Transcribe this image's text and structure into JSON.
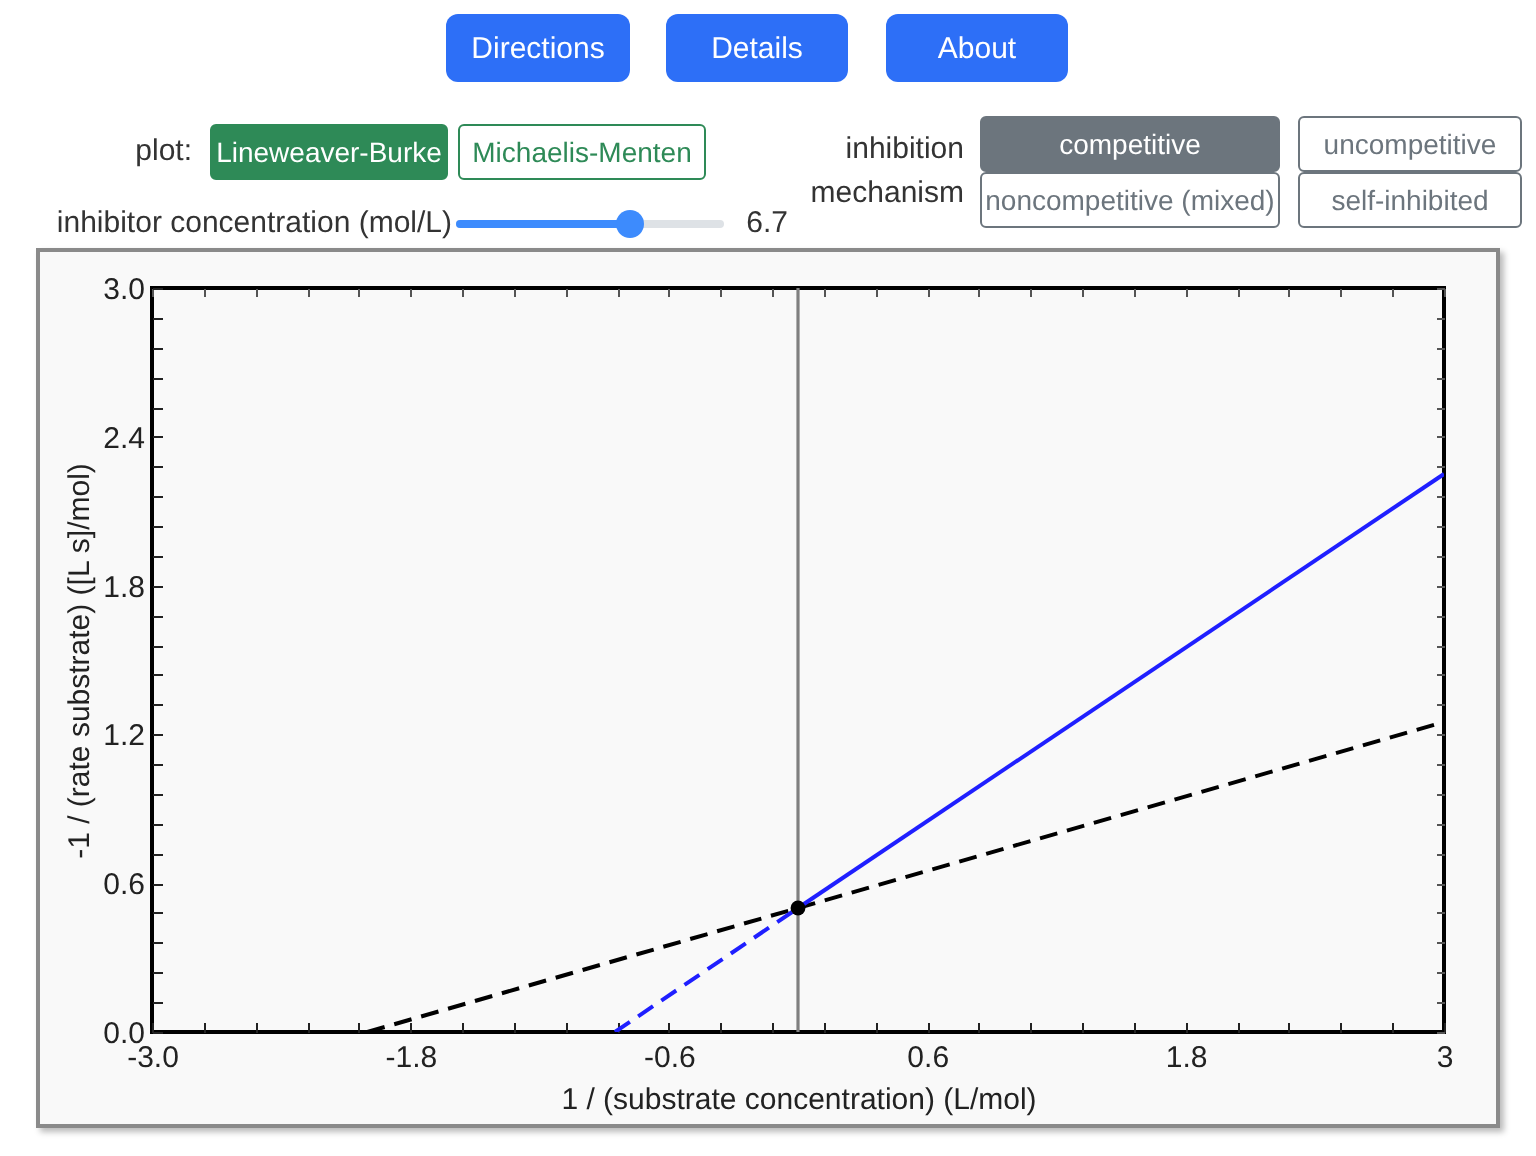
{
  "chart_data": {
    "type": "line",
    "xlabel": "1 / (substrate concentration) (L/mol)",
    "ylabel": "-1 / (rate substrate) ([L s]/mol)",
    "xlim": [
      -3,
      3
    ],
    "ylim": [
      0,
      3
    ],
    "xticks": [
      {
        "value": -3,
        "label": "-3.0"
      },
      {
        "value": -2.76,
        "label": null
      },
      {
        "value": -2.52,
        "label": null
      },
      {
        "value": -2.28,
        "label": null
      },
      {
        "value": -2.04,
        "label": null
      },
      -1.8,
      {
        "value": -1.56,
        "label": null
      },
      {
        "value": -1.32,
        "label": null
      },
      {
        "value": -1.08,
        "label": null
      },
      {
        "value": -0.84,
        "label": null
      },
      -0.6,
      {
        "value": -0.36,
        "label": null
      },
      {
        "value": -0.12,
        "label": null
      },
      {
        "value": 0.12,
        "label": null
      },
      {
        "value": 0.36,
        "label": null
      },
      0.6,
      {
        "value": 0.84,
        "label": null
      },
      {
        "value": 1.08,
        "label": null
      },
      {
        "value": 1.32,
        "label": null
      },
      {
        "value": 1.56,
        "label": null
      },
      1.8,
      {
        "value": 2.04,
        "label": null
      },
      {
        "value": 2.28,
        "label": null
      },
      {
        "value": 2.52,
        "label": null
      },
      {
        "value": 2.76,
        "label": null
      },
      3
    ],
    "yticks": [
      {
        "value": 0,
        "label": "0.0"
      },
      {
        "value": 0.12,
        "label": null
      },
      {
        "value": 0.24,
        "label": null
      },
      {
        "value": 0.36,
        "label": null
      },
      {
        "value": 0.48,
        "label": null
      },
      0.6,
      {
        "value": 0.72,
        "label": null
      },
      {
        "value": 0.84,
        "label": null
      },
      {
        "value": 0.96,
        "label": null
      },
      {
        "value": 1.08,
        "label": null
      },
      1.2,
      {
        "value": 1.32,
        "label": null
      },
      {
        "value": 1.44,
        "label": null
      },
      {
        "value": 1.56,
        "label": null
      },
      {
        "value": 1.68,
        "label": null
      },
      1.8,
      {
        "value": 1.92,
        "label": null
      },
      {
        "value": 2.04,
        "label": null
      },
      {
        "value": 2.16,
        "label": null
      },
      {
        "value": 2.28,
        "label": null
      },
      2.4,
      {
        "value": 2.52,
        "label": null
      },
      {
        "value": 2.64,
        "label": null
      },
      {
        "value": 2.76,
        "label": null
      },
      {
        "value": 2.88,
        "label": null
      },
      {
        "value": 3,
        "label": "3.0"
      }
    ],
    "ref_lines": [
      {
        "axis": "x",
        "value": 0,
        "color": "#808080"
      }
    ],
    "series": [
      {
        "x": [
          -2,
          3
        ],
        "values": [
          0,
          1.25
        ],
        "color": "#000000",
        "line_style": "dashed"
      },
      {
        "x": [
          -0.85,
          0
        ],
        "values": [
          0,
          0.5
        ],
        "color": "#1f1fff",
        "line_style": "dashed"
      },
      {
        "x": [
          0,
          3
        ],
        "values": [
          0.5,
          2.25
        ],
        "color": "#1f1fff",
        "line_style": "solid"
      },
      {
        "type": "scatter",
        "x": [
          0
        ],
        "values": [
          0.5
        ],
        "color": "#000000",
        "marker": "circle"
      }
    ],
    "annotations": [
      "Directions",
      "Details",
      "About",
      "plot:",
      "Lineweaver-Burke",
      "Michaelis-Menten",
      "inhibition mechanism",
      "competitive",
      "uncompetitive",
      "noncompetitive (mixed)",
      "self-inhibited",
      "inhibitor concentration (mol/L)",
      "6.7"
    ]
  }
}
